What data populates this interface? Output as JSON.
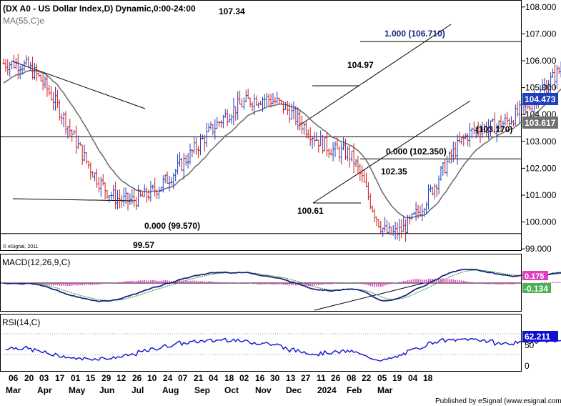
{
  "chart_data": [
    {
      "type": "ohlc",
      "title": "(DX A0 - US Dollar Index,D) Dynamic,0:00-24:00",
      "indicator_label": "MA(55,C)e",
      "copyright": "© eSignal, 2011",
      "y_ticks": [
        "108.000",
        "107.000",
        "106.000",
        "105.000",
        "104.000",
        "103.000",
        "102.000",
        "101.000",
        "100.000",
        "99.000"
      ],
      "ylim": [
        99,
        108.3
      ],
      "last_price": 104.473,
      "ma_value": 103.617,
      "colors": {
        "up": "#1f3fbf",
        "down": "#d01818",
        "ma": "#707070",
        "last_bg": "#1f3fbf",
        "ma_bg": "#707070"
      },
      "horizontal_levels": [
        {
          "value": 106.71,
          "label": "1.000 (106.710)"
        },
        {
          "value": 103.17,
          "label": "(103.170)"
        },
        {
          "value": 102.35,
          "label": "0.000 (102.350)"
        },
        {
          "value": 99.57,
          "label": "0.000 (99.570)"
        }
      ],
      "price_annotations": [
        "107.34",
        "104.97",
        "102.35",
        "100.61",
        "99.57"
      ],
      "key_points": [
        {
          "date": "2023-03-07",
          "value": 105.9
        },
        {
          "date": "2023-04-14",
          "value": 100.8
        },
        {
          "date": "2023-05-31",
          "value": 104.6
        },
        {
          "date": "2023-06-28",
          "value": 102.6
        },
        {
          "date": "2023-07-14",
          "value": 99.57
        },
        {
          "date": "2023-08-15",
          "value": 103.5
        },
        {
          "date": "2023-10-03",
          "value": 107.34
        },
        {
          "date": "2023-11-01",
          "value": 106.5
        },
        {
          "date": "2023-12-27",
          "value": 100.61
        },
        {
          "date": "2024-02-14",
          "value": 104.97
        },
        {
          "date": "2024-03-08",
          "value": 102.35
        },
        {
          "date": "2024-03-19",
          "value": 104.473
        }
      ]
    },
    {
      "type": "line",
      "label": "MACD(12,26,9,C)",
      "values_shown": [
        "0.175",
        "-0.134"
      ],
      "colors": {
        "macd": "#1a237e",
        "signal": "#2e8b2e",
        "hist": "#e040c0",
        "value_bg": "#4caf50"
      }
    },
    {
      "type": "line",
      "label": "RSI(14,C)",
      "y_ticks": [
        "50",
        "0"
      ],
      "value_shown": "62.211",
      "colors": {
        "line": "#1010d0",
        "value_bg": "#1010d0"
      }
    }
  ],
  "x_day_labels": [
    "06",
    "20",
    "03",
    "17",
    "01",
    "15",
    "29",
    "12",
    "26",
    "10",
    "24",
    "07",
    "21",
    "04",
    "18",
    "02",
    "16",
    "30",
    "13",
    "27",
    "11",
    "26",
    "08",
    "22",
    "05",
    "19",
    "04",
    "18"
  ],
  "x_month_labels": [
    "Mar",
    "Apr",
    "May",
    "Jun",
    "Jul",
    "Aug",
    "Sep",
    "Oct",
    "Nov",
    "Dec",
    "2024",
    "Feb",
    "Mar"
  ],
  "footer": "Published by eSignal (www.esignal.com)"
}
